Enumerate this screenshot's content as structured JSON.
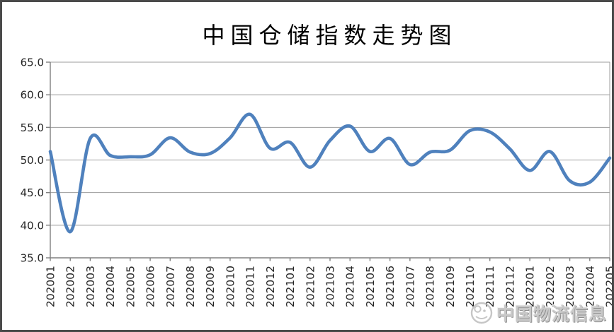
{
  "chart_data": {
    "type": "line",
    "title": "中国仓储指数走势图",
    "categories": [
      "202001",
      "202002",
      "202003",
      "202004",
      "202005",
      "202006",
      "202007",
      "202008",
      "202009",
      "202010",
      "202011",
      "202012",
      "202101",
      "202102",
      "202103",
      "202104",
      "202105",
      "202106",
      "202107",
      "202108",
      "202109",
      "202110",
      "202111",
      "202112",
      "202201",
      "202202",
      "202203",
      "202204",
      "202205"
    ],
    "values": [
      51.3,
      39.0,
      53.3,
      50.7,
      50.5,
      50.8,
      53.4,
      51.2,
      51.0,
      53.4,
      57.0,
      51.8,
      52.7,
      48.9,
      53.0,
      55.2,
      51.3,
      53.3,
      49.3,
      51.2,
      51.5,
      54.5,
      54.3,
      51.7,
      48.4,
      51.3,
      46.8,
      46.6,
      50.3
    ],
    "xlabel": "",
    "ylabel": "",
    "ylim": [
      35.0,
      65.0
    ],
    "ytick_values": [
      35.0,
      40.0,
      45.0,
      50.0,
      55.0,
      60.0,
      65.0
    ],
    "ytick_labels": [
      "35.0",
      "40.0",
      "45.0",
      "50.0",
      "55.0",
      "60.0",
      "65.0"
    ],
    "grid": true,
    "legend_position": "none",
    "smooth": true,
    "line_color": "#4F81BD",
    "gridline_color": "#9c9c9c",
    "axis_color": "#808080",
    "tick_label_color": "#262626",
    "title_color": "#000000"
  },
  "watermark": {
    "text": "中国物流信息"
  }
}
